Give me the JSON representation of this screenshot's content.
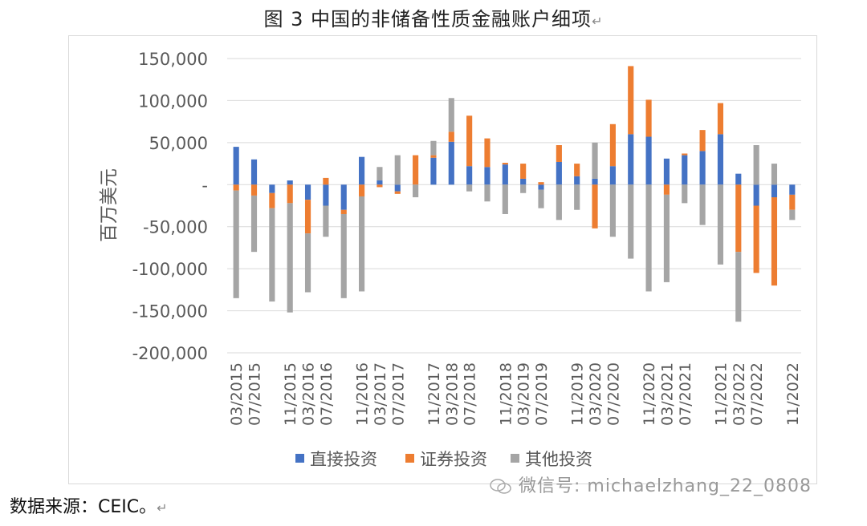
{
  "title": "图 3   中国的非储备性质金融账户细项",
  "title_mark": "↵",
  "source": "数据来源：CEIC。",
  "source_mark": "↵",
  "watermark": "微信号: michaelzhang_22_0808",
  "colors": {
    "direct": "#4472c4",
    "securities": "#ed7d31",
    "other": "#a5a5a5",
    "grid": "#d9d9d9"
  },
  "chart_data": {
    "type": "bar",
    "stacked": true,
    "ylabel": "百万美元",
    "ylim": [
      -200000,
      150000
    ],
    "yticks": [
      150000,
      100000,
      50000,
      0,
      -50000,
      -100000,
      -150000,
      -200000
    ],
    "ytick_labels": [
      "150,000",
      "100,000",
      "50,000",
      "-",
      "-50,000",
      "-100,000",
      "-150,000",
      "-200,000"
    ],
    "grid": true,
    "legend": "bottom",
    "categories": [
      "2015Q1",
      "2015Q2",
      "2015Q3",
      "2015Q4",
      "2016Q1",
      "2016Q2",
      "2016Q3",
      "2016Q4",
      "2017Q1",
      "2017Q2",
      "2017Q3",
      "2017Q4",
      "2018Q1",
      "2018Q2",
      "2018Q3",
      "2018Q4",
      "2019Q1",
      "2019Q2",
      "2019Q3",
      "2019Q4",
      "2020Q1",
      "2020Q2",
      "2020Q3",
      "2020Q4",
      "2021Q1",
      "2021Q2",
      "2021Q3",
      "2021Q4",
      "2022Q1",
      "2022Q2",
      "2022Q3",
      "2022Q4"
    ],
    "x_tick_labels": [
      "03/2015",
      "07/2015",
      "11/2015",
      "03/2016",
      "07/2016",
      "11/2016",
      "03/2017",
      "07/2017",
      "11/2017",
      "03/2018",
      "07/2018",
      "11/2018",
      "03/2019",
      "07/2019",
      "11/2019",
      "03/2020",
      "07/2020",
      "11/2020",
      "03/2021",
      "07/2021",
      "11/2021",
      "03/2022",
      "07/2022",
      "11/2022"
    ],
    "series": [
      {
        "name": "直接投资",
        "values": [
          45000,
          30000,
          -10000,
          5000,
          -18000,
          -25000,
          -30000,
          33000,
          5000,
          -8000,
          0,
          32000,
          51000,
          22000,
          21000,
          24000,
          7000,
          -6000,
          27000,
          10000,
          7000,
          22000,
          60000,
          57000,
          31000,
          35000,
          40000,
          60000,
          13000,
          -25000,
          -15000,
          -12000
        ]
      },
      {
        "name": "证券投资",
        "values": [
          -7000,
          -13000,
          -18000,
          -22000,
          -40000,
          8000,
          -5000,
          -14000,
          -3000,
          -3000,
          35000,
          3000,
          12000,
          60000,
          34000,
          2000,
          18000,
          3000,
          20000,
          15000,
          -52000,
          50000,
          81000,
          44000,
          -12000,
          2000,
          25000,
          37000,
          -80000,
          -80000,
          -105000,
          -18000
        ]
      },
      {
        "name": "其他投资",
        "values": [
          -128000,
          -67000,
          -111000,
          -130000,
          -70000,
          -37000,
          -100000,
          -113000,
          16000,
          35000,
          -15000,
          17000,
          40000,
          -8000,
          -20000,
          -35000,
          -10000,
          -22000,
          -42000,
          -30000,
          43000,
          -62000,
          -88000,
          -127000,
          -104000,
          -22000,
          -48000,
          -95000,
          -83000,
          47000,
          25000,
          -12000
        ]
      }
    ]
  }
}
